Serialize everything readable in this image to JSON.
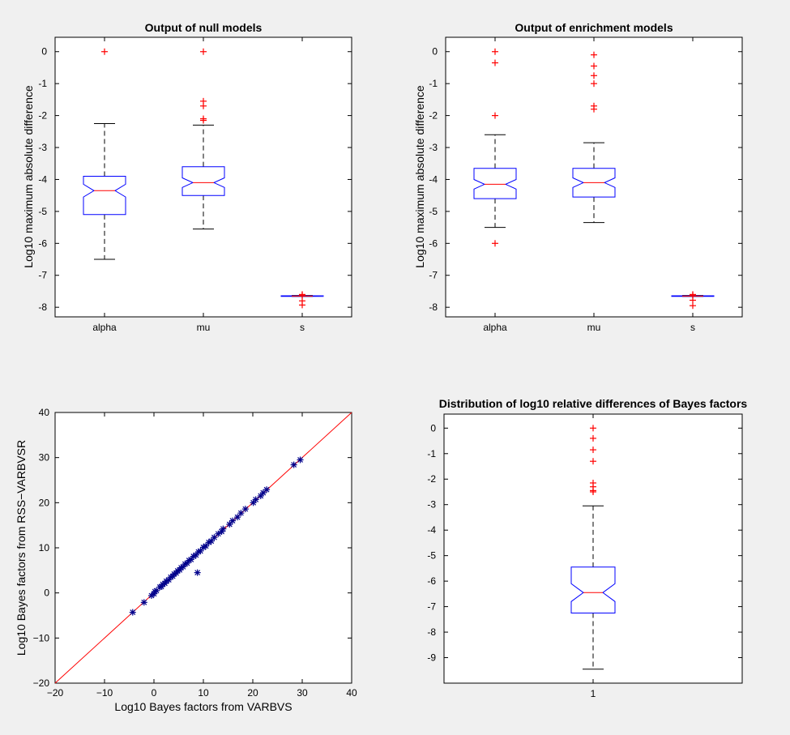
{
  "figure": {
    "background": "#f0f0f0",
    "box_color": "#0000ff",
    "median_color": "#ff0000",
    "outlier_color": "#ff0000",
    "star_color": "#00008b",
    "line_color": "#ff0000"
  },
  "chart_data": [
    {
      "id": "null_models",
      "type": "boxplot",
      "title": "Output of null models",
      "xlabel": "",
      "ylabel": "Log10 maximum absolute difference",
      "ylim": [
        -8.3,
        0.45
      ],
      "yticks": [
        0,
        -1,
        -2,
        -3,
        -4,
        -5,
        -6,
        -7,
        -8
      ],
      "ytick_labels": [
        "0",
        "-1",
        "-2",
        "-3",
        "-4",
        "-5",
        "-6",
        "-7",
        "-8"
      ],
      "categories": [
        "alpha",
        "mu",
        "s"
      ],
      "boxes": [
        {
          "name": "alpha",
          "whisker_low": -6.5,
          "q1": -5.1,
          "median": -4.35,
          "q3": -3.9,
          "whisker_high": -2.25,
          "notch_low": -4.55,
          "notch_high": -4.15,
          "outliers": [
            0
          ]
        },
        {
          "name": "mu",
          "whisker_low": -5.55,
          "q1": -4.5,
          "median": -4.1,
          "q3": -3.6,
          "whisker_high": -2.3,
          "notch_low": -4.25,
          "notch_high": -3.95,
          "outliers": [
            0,
            -1.55,
            -1.7,
            -2.1,
            -2.15
          ]
        },
        {
          "name": "s",
          "whisker_low": -7.66,
          "q1": -7.66,
          "median": -7.65,
          "q3": -7.64,
          "whisker_high": -7.63,
          "notch_low": -7.655,
          "notch_high": -7.645,
          "outliers": [
            -7.6,
            -7.62,
            -7.8,
            -7.93
          ]
        }
      ]
    },
    {
      "id": "enrichment_models",
      "type": "boxplot",
      "title": "Output of enrichment models",
      "xlabel": "",
      "ylabel": "Log10 maximum absolute difference",
      "ylim": [
        -8.3,
        0.45
      ],
      "yticks": [
        0,
        -1,
        -2,
        -3,
        -4,
        -5,
        -6,
        -7,
        -8
      ],
      "ytick_labels": [
        "0",
        "-1",
        "-2",
        "-3",
        "-4",
        "-5",
        "-6",
        "-7",
        "-8"
      ],
      "categories": [
        "alpha",
        "mu",
        "s"
      ],
      "boxes": [
        {
          "name": "alpha",
          "whisker_low": -5.5,
          "q1": -4.6,
          "median": -4.15,
          "q3": -3.65,
          "whisker_high": -2.6,
          "notch_low": -4.3,
          "notch_high": -4.0,
          "outliers": [
            0,
            -0.35,
            -2.0,
            -6.0
          ]
        },
        {
          "name": "mu",
          "whisker_low": -5.35,
          "q1": -4.55,
          "median": -4.1,
          "q3": -3.65,
          "whisker_high": -2.85,
          "notch_low": -4.25,
          "notch_high": -3.95,
          "outliers": [
            -0.1,
            -0.45,
            -0.75,
            -1.0,
            -1.7,
            -1.8
          ]
        },
        {
          "name": "s",
          "whisker_low": -7.66,
          "q1": -7.66,
          "median": -7.65,
          "q3": -7.64,
          "whisker_high": -7.63,
          "notch_low": -7.655,
          "notch_high": -7.645,
          "outliers": [
            -7.6,
            -7.62,
            -7.78,
            -7.95
          ]
        }
      ]
    },
    {
      "id": "bayes_scatter",
      "type": "scatter",
      "title": "",
      "xlabel": "Log10 Bayes factors from VARBVS",
      "ylabel": "Log10 Bayes factors from RSS−VARBVSR",
      "xlim": [
        -20,
        40
      ],
      "ylim": [
        -20,
        40
      ],
      "xticks": [
        -20,
        -10,
        0,
        10,
        20,
        30,
        40
      ],
      "xtick_labels": [
        "−20",
        "−10",
        "0",
        "10",
        "20",
        "30",
        "40"
      ],
      "yticks": [
        -20,
        -10,
        0,
        10,
        20,
        30,
        40
      ],
      "ytick_labels": [
        "−20",
        "−10",
        "0",
        "10",
        "20",
        "30",
        "40"
      ],
      "reference_line": [
        [
          -20,
          -20
        ],
        [
          40,
          40
        ]
      ],
      "points": [
        [
          -4.3,
          -4.3
        ],
        [
          -2.0,
          -2.1
        ],
        [
          -0.5,
          -0.6
        ],
        [
          0,
          -0.2
        ],
        [
          0.2,
          0.3
        ],
        [
          0.5,
          0.5
        ],
        [
          1.2,
          1.3
        ],
        [
          1.5,
          1.4
        ],
        [
          1.8,
          1.9
        ],
        [
          2.2,
          2.1
        ],
        [
          2.5,
          2.6
        ],
        [
          3.0,
          2.9
        ],
        [
          3.4,
          3.5
        ],
        [
          3.8,
          3.7
        ],
        [
          4.1,
          4.2
        ],
        [
          4.5,
          4.4
        ],
        [
          4.8,
          4.9
        ],
        [
          5.2,
          5.1
        ],
        [
          5.5,
          5.6
        ],
        [
          5.9,
          5.8
        ],
        [
          6.3,
          6.4
        ],
        [
          6.7,
          6.6
        ],
        [
          7.1,
          7.2
        ],
        [
          7.5,
          7.4
        ],
        [
          8.0,
          8.1
        ],
        [
          8.5,
          8.4
        ],
        [
          9.0,
          9.1
        ],
        [
          9.4,
          9.3
        ],
        [
          10.0,
          10.1
        ],
        [
          10.5,
          10.4
        ],
        [
          11.1,
          11.2
        ],
        [
          11.6,
          11.5
        ],
        [
          12.2,
          12.3
        ],
        [
          13.0,
          13.1
        ],
        [
          13.7,
          13.6
        ],
        [
          14.0,
          14.2
        ],
        [
          15.3,
          15.2
        ],
        [
          15.9,
          16.0
        ],
        [
          16.9,
          16.8
        ],
        [
          17.6,
          17.7
        ],
        [
          18.5,
          18.6
        ],
        [
          20.1,
          20.0
        ],
        [
          20.6,
          20.7
        ],
        [
          21.6,
          21.5
        ],
        [
          22.1,
          22.2
        ],
        [
          22.8,
          22.9
        ],
        [
          28.3,
          28.4
        ],
        [
          29.6,
          29.5
        ],
        [
          8.8,
          4.5
        ]
      ]
    },
    {
      "id": "bayes_rel_diff",
      "type": "boxplot",
      "title": "Distribution of log10 relative differences of Bayes factors",
      "xlabel": "",
      "ylabel": "",
      "ylim": [
        -10.0,
        0.55
      ],
      "yticks": [
        0,
        -1,
        -2,
        -3,
        -4,
        -5,
        -6,
        -7,
        -8,
        -9
      ],
      "ytick_labels": [
        "0",
        "-1",
        "-2",
        "-3",
        "-4",
        "-5",
        "-6",
        "-7",
        "-8",
        "-9"
      ],
      "categories": [
        "1"
      ],
      "boxes": [
        {
          "name": "1",
          "whisker_low": -9.45,
          "q1": -7.25,
          "median": -6.45,
          "q3": -5.45,
          "whisker_high": -3.05,
          "notch_low": -6.8,
          "notch_high": -6.1,
          "outliers": [
            0,
            -0.4,
            -0.85,
            -1.3,
            -2.15,
            -2.3,
            -2.45,
            -2.5
          ]
        }
      ]
    }
  ]
}
